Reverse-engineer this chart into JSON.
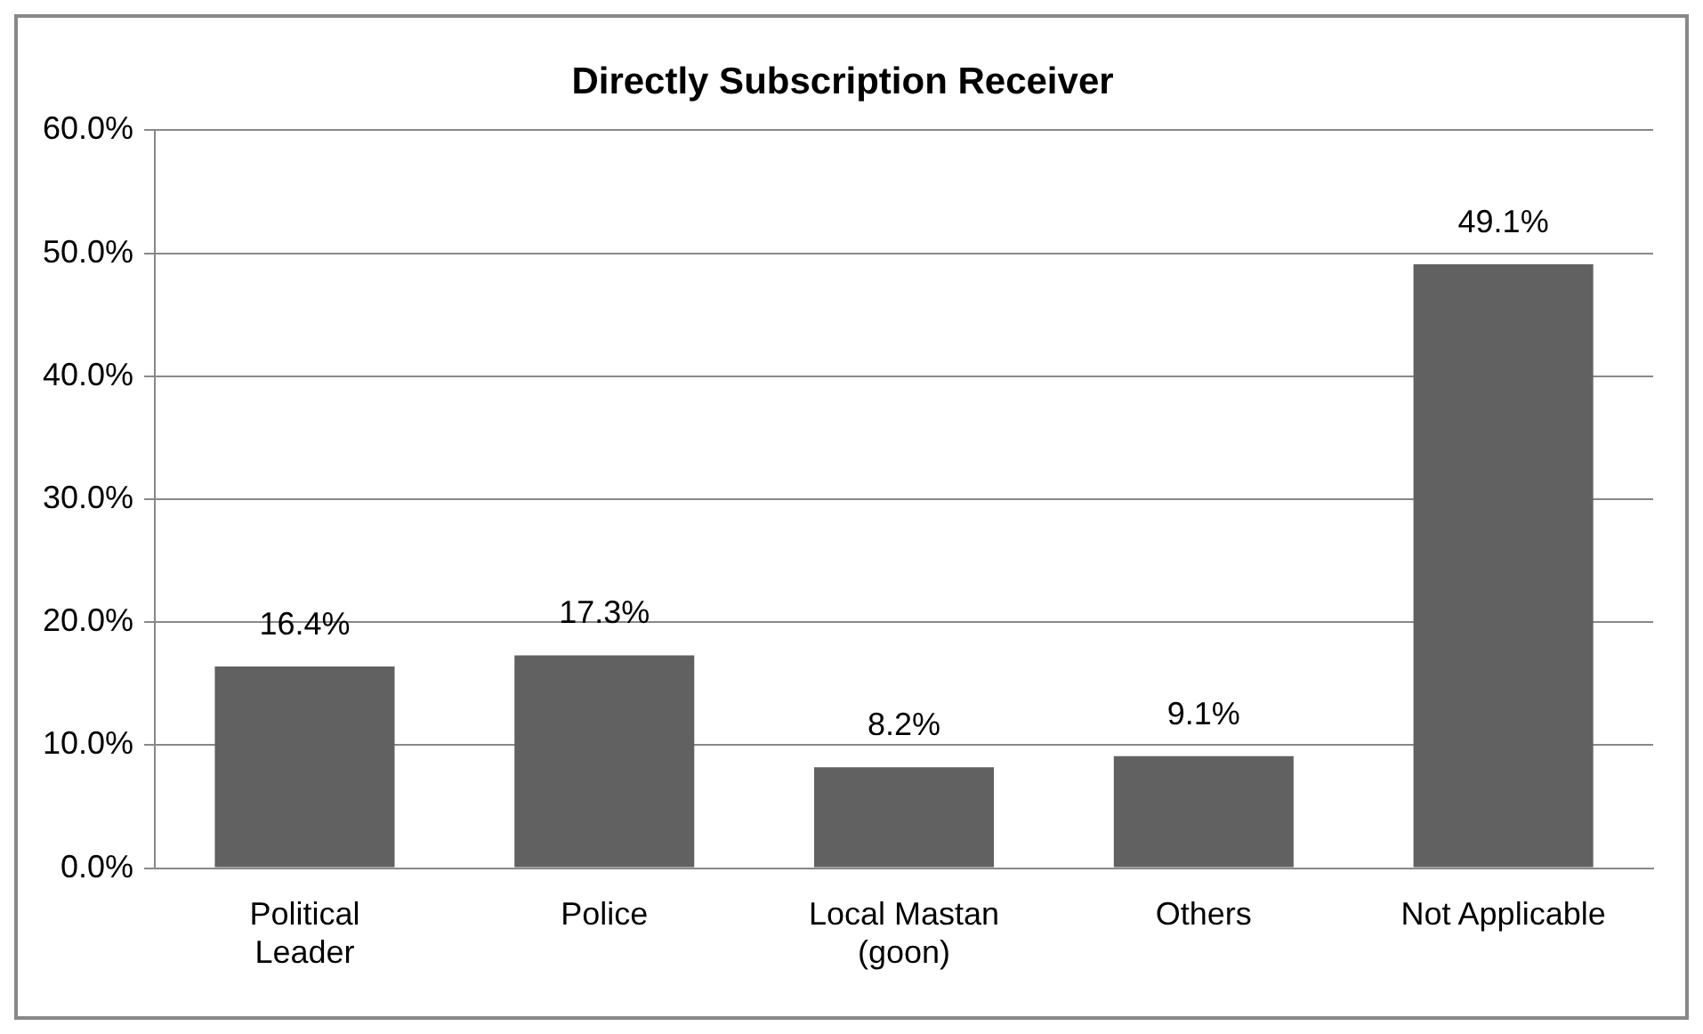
{
  "chart_data": {
    "type": "bar",
    "title": "Directly Subscription Receiver",
    "categories": [
      "Political Leader",
      "Police",
      "Local Mastan (goon)",
      "Others",
      "Not Applicable"
    ],
    "values": [
      16.4,
      17.3,
      8.2,
      9.1,
      49.1
    ],
    "value_labels": [
      "16.4%",
      "17.3%",
      "8.2%",
      "9.1%",
      "49.1%"
    ],
    "color": "#616161",
    "ylim": [
      0,
      60
    ],
    "yticks": [
      {
        "value": 0,
        "label": "0.0%"
      },
      {
        "value": 10,
        "label": "10.0%"
      },
      {
        "value": 20,
        "label": "20.0%"
      },
      {
        "value": 30,
        "label": "30.0%"
      },
      {
        "value": 40,
        "label": "40.0%"
      },
      {
        "value": 50,
        "label": "50.0%"
      },
      {
        "value": 60,
        "label": "60.0%"
      }
    ],
    "grid": "y",
    "legend": false
  }
}
